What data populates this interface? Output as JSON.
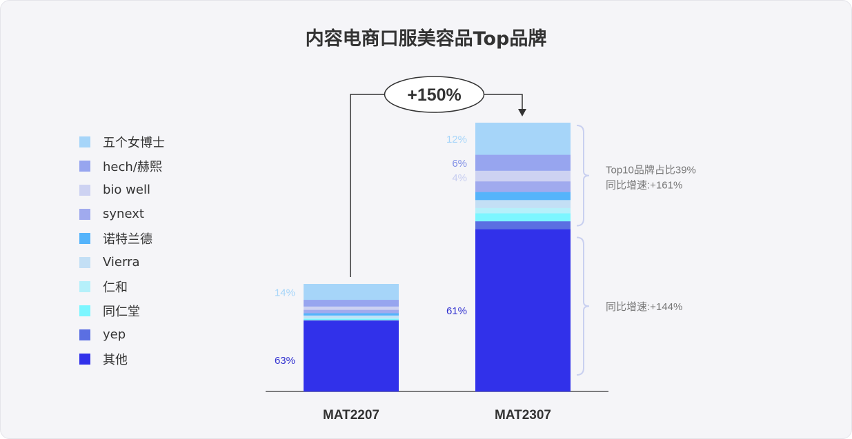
{
  "chart_data": {
    "type": "stacked-bar",
    "title": "内容电商口服美容品Top品牌",
    "categories": [
      "MAT2207",
      "MAT2307"
    ],
    "bar_totals_relative": [
      1.0,
      2.5
    ],
    "series": [
      {
        "name": "其他",
        "color": "#3131ea",
        "values": [
          63,
          61
        ]
      },
      {
        "name": "yep",
        "color": "#5b6fe2",
        "values": [
          1,
          3
        ]
      },
      {
        "name": "同仁堂",
        "color": "#7cf6ff",
        "values": [
          1,
          3
        ]
      },
      {
        "name": "仁和",
        "color": "#b5f0fa",
        "values": [
          1,
          2
        ]
      },
      {
        "name": "Vierra",
        "color": "#c3dff5",
        "values": [
          2,
          3
        ]
      },
      {
        "name": "诺特兰德",
        "color": "#55b4fb",
        "values": [
          2,
          3
        ]
      },
      {
        "name": "synext",
        "color": "#a0aaee",
        "values": [
          3,
          4
        ]
      },
      {
        "name": "bio well",
        "color": "#cdd2f2",
        "values": [
          3,
          4
        ]
      },
      {
        "name": "hech/赫熙",
        "color": "#97a5ef",
        "values": [
          6,
          6
        ]
      },
      {
        "name": "五个女博士",
        "color": "#a6d5f9",
        "values": [
          14,
          12
        ]
      }
    ],
    "data_labels": [
      {
        "category": "MAT2207",
        "series": "五个女博士",
        "text": "14%",
        "color": "#a6d5f9"
      },
      {
        "category": "MAT2207",
        "series": "其他",
        "text": "63%",
        "color": "#3131d0"
      },
      {
        "category": "MAT2307",
        "series": "五个女博士",
        "text": "12%",
        "color": "#a6d5f9"
      },
      {
        "category": "MAT2307",
        "series": "hech/赫熙",
        "text": "6%",
        "color": "#7f8ee6"
      },
      {
        "category": "MAT2307",
        "series": "bio well",
        "text": "4%",
        "color": "#c6cdf0"
      },
      {
        "category": "MAT2307",
        "series": "其他",
        "text": "61%",
        "color": "#3131d0"
      }
    ],
    "growth_label": "+150%",
    "annotations": {
      "top10_share": "Top10品牌占比39%",
      "top10_growth": "同比增速:+161%",
      "others_growth": "同比增速:+144%"
    }
  },
  "legend": [
    {
      "name": "五个女博士",
      "color": "#a6d5f9"
    },
    {
      "name": "hech/赫熙",
      "color": "#97a5ef"
    },
    {
      "name": "bio well",
      "color": "#cdd2f2"
    },
    {
      "name": "synext",
      "color": "#a0aaee"
    },
    {
      "name": "诺特兰德",
      "color": "#55b4fb"
    },
    {
      "name": "Vierra",
      "color": "#c3dff5"
    },
    {
      "name": "仁和",
      "color": "#b5f0fa"
    },
    {
      "name": "同仁堂",
      "color": "#7cf6ff"
    },
    {
      "name": "yep",
      "color": "#5b6fe2"
    },
    {
      "name": "其他",
      "color": "#3131ea"
    }
  ]
}
